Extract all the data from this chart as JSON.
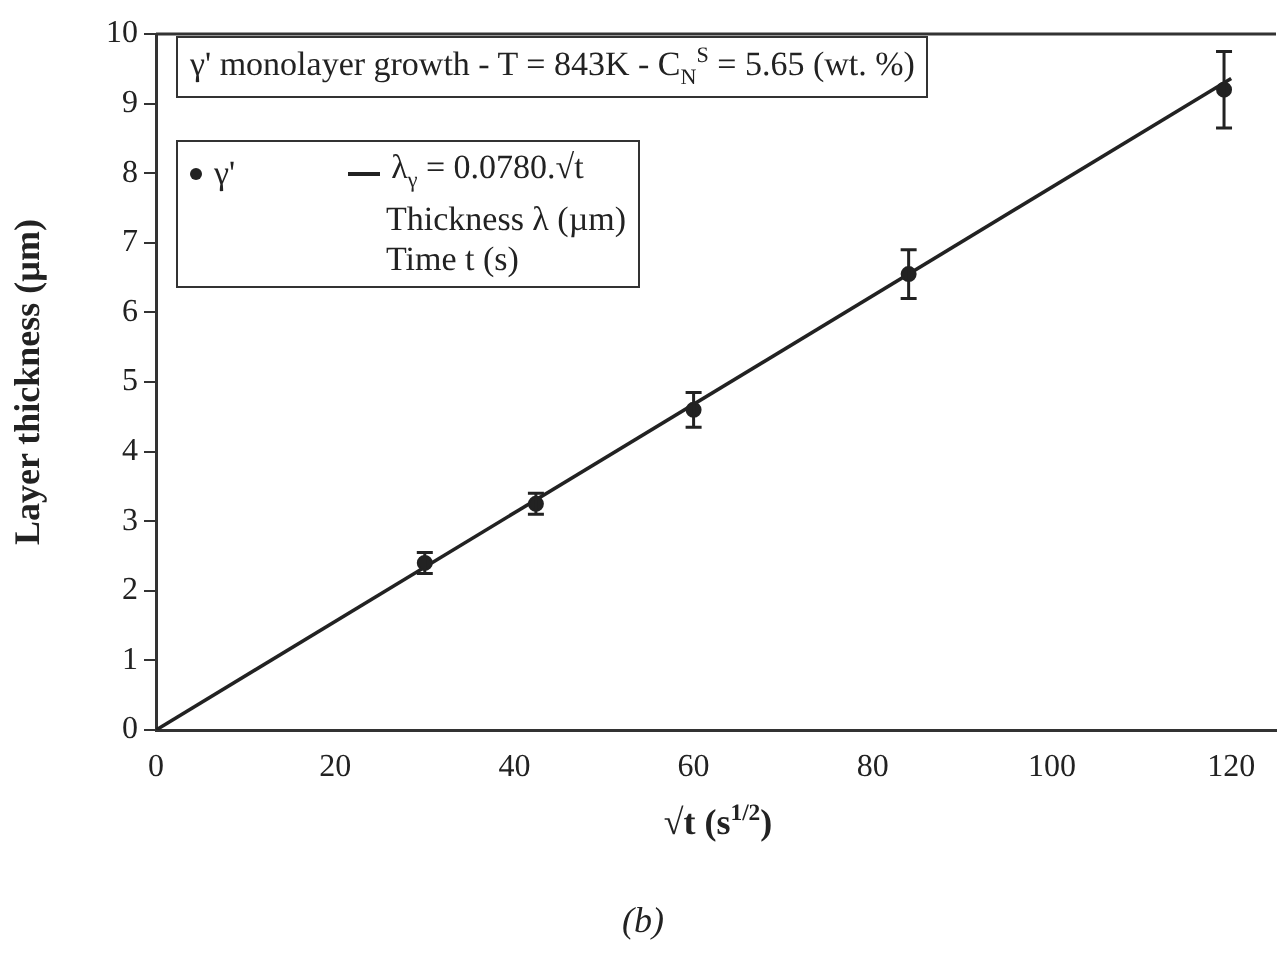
{
  "chart_data": {
    "type": "scatter",
    "title": "γ' monolayer growth - T = 843K - C$_{N}$$^{S}$ = 5.65 (wt. %)",
    "xlabel": "√t (s$^{1/2}$)",
    "ylabel": "Layer thickness (µm)",
    "xlim": [
      0,
      125
    ],
    "xticks": [
      0,
      20,
      40,
      60,
      80,
      100,
      120
    ],
    "ylim": [
      0,
      10
    ],
    "yticks": [
      0,
      1,
      2,
      3,
      4,
      5,
      6,
      7,
      8,
      9,
      10
    ],
    "grid": false,
    "legend": "top left",
    "series": [
      {
        "name": "γ'",
        "marker": "circle",
        "color": "#222222",
        "x": [
          30,
          42.4,
          60,
          84,
          119.2
        ],
        "values": [
          2.4,
          3.25,
          4.6,
          6.55,
          9.2
        ],
        "errors": [
          0.15,
          0.15,
          0.25,
          0.35,
          0.55
        ]
      },
      {
        "name": "λ$_{γ}$ = 0.0780.√t",
        "type": "line",
        "marker": "none",
        "color": "#222222",
        "x": [
          0,
          120
        ],
        "values": [
          0,
          9.36
        ]
      }
    ],
    "annotations": [
      "Thickness λ (µm)",
      "Time t (s)",
      "(b)"
    ]
  }
}
